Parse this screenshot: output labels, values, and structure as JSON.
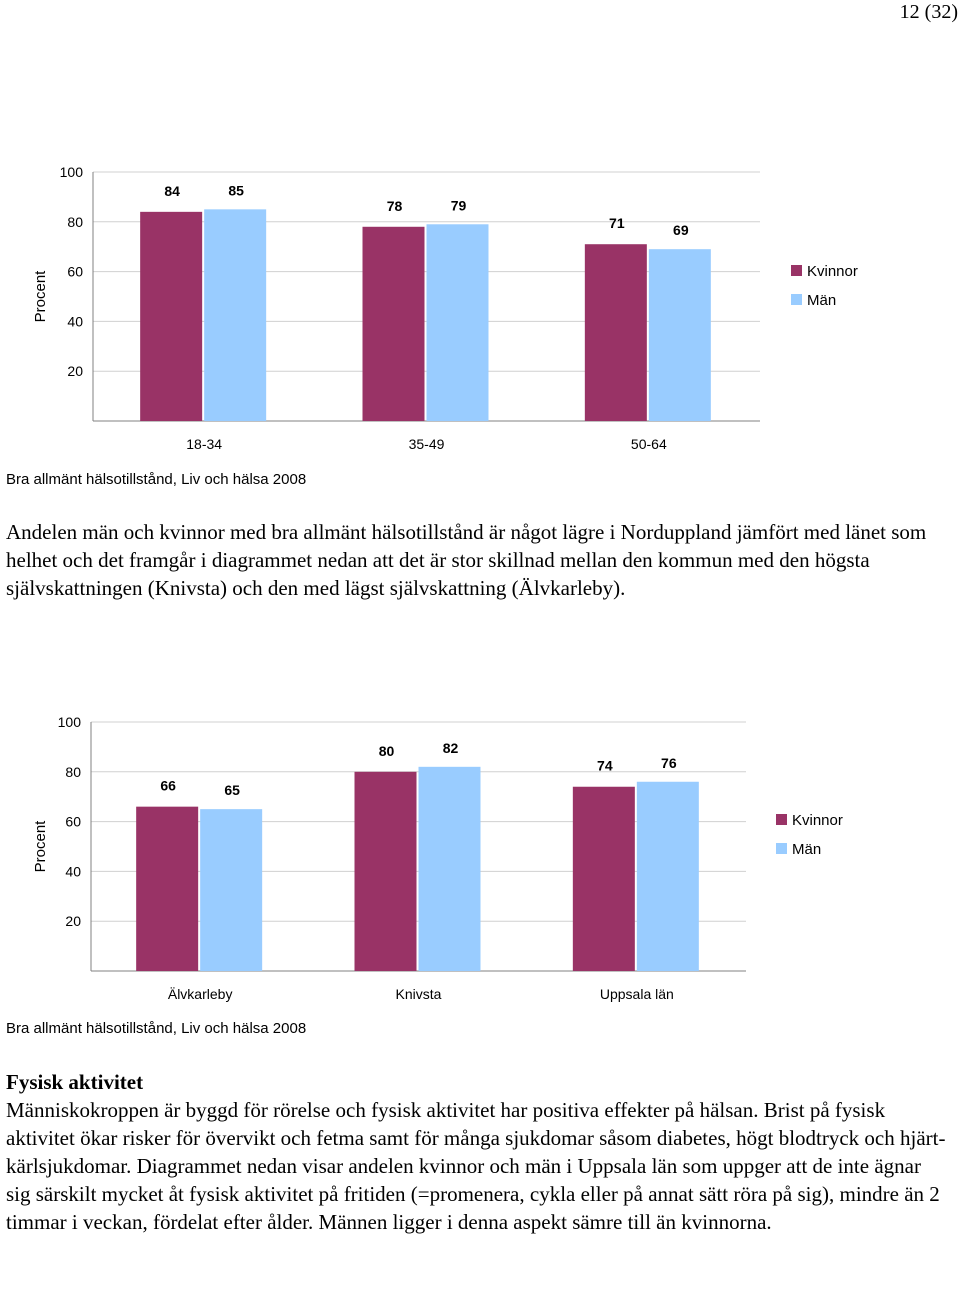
{
  "page_number": "12 (32)",
  "colors": {
    "kvinnor": "#993366",
    "man": "#99CCFF",
    "grid": "#D0D0D0",
    "axis": "#808080"
  },
  "chart1": {
    "caption": "Bra allmänt hälsotillstånd, Liv och hälsa 2008",
    "chart_data": {
      "type": "bar",
      "categories": [
        "18-34",
        "35-49",
        "50-64"
      ],
      "series": [
        {
          "name": "Kvinnor",
          "values": [
            84,
            78,
            71
          ]
        },
        {
          "name": "Män",
          "values": [
            85,
            79,
            69
          ]
        }
      ],
      "ylabel": "Procent",
      "yticks": [
        "20",
        "40",
        "60",
        "80",
        "100"
      ],
      "ylim": [
        0,
        100
      ],
      "grid": true,
      "legend": "right"
    }
  },
  "paragraph1": "Andelen män och kvinnor med bra allmänt hälsotillstånd är något lägre i Norduppland jämfört med länet som helhet och det framgår i diagrammet nedan att det är stor skillnad mellan den kommun med den högsta självskattningen (Knivsta) och den med lägst självskattning (Älvkarleby).",
  "chart2": {
    "caption": "Bra allmänt hälsotillstånd, Liv och hälsa 2008",
    "chart_data": {
      "type": "bar",
      "categories": [
        "Älvkarleby",
        "Knivsta",
        "Uppsala län"
      ],
      "series": [
        {
          "name": "Kvinnor",
          "values": [
            66,
            80,
            74
          ]
        },
        {
          "name": "Män",
          "values": [
            65,
            82,
            76
          ]
        }
      ],
      "ylabel": "Procent",
      "yticks": [
        "20",
        "40",
        "60",
        "80",
        "100"
      ],
      "ylim": [
        0,
        100
      ],
      "grid": true,
      "legend": "right"
    }
  },
  "section": {
    "heading": "Fysisk aktivitet",
    "paragraph": "Människokroppen är byggd för rörelse och fysisk aktivitet har positiva effekter på hälsan. Brist på fysisk aktivitet ökar risker för övervikt och fetma samt för många sjukdomar såsom diabetes, högt blodtryck och hjärt-kärlsjukdomar. Diagrammet nedan visar andelen kvinnor och män i Uppsala län som uppger att de inte ägnar sig särskilt mycket åt fysisk aktivitet på fritiden (=promenera, cykla eller på annat sätt röra på sig), mindre än 2 timmar i veckan, fördelat efter ålder. Männen ligger i denna aspekt sämre till än kvinnorna."
  }
}
